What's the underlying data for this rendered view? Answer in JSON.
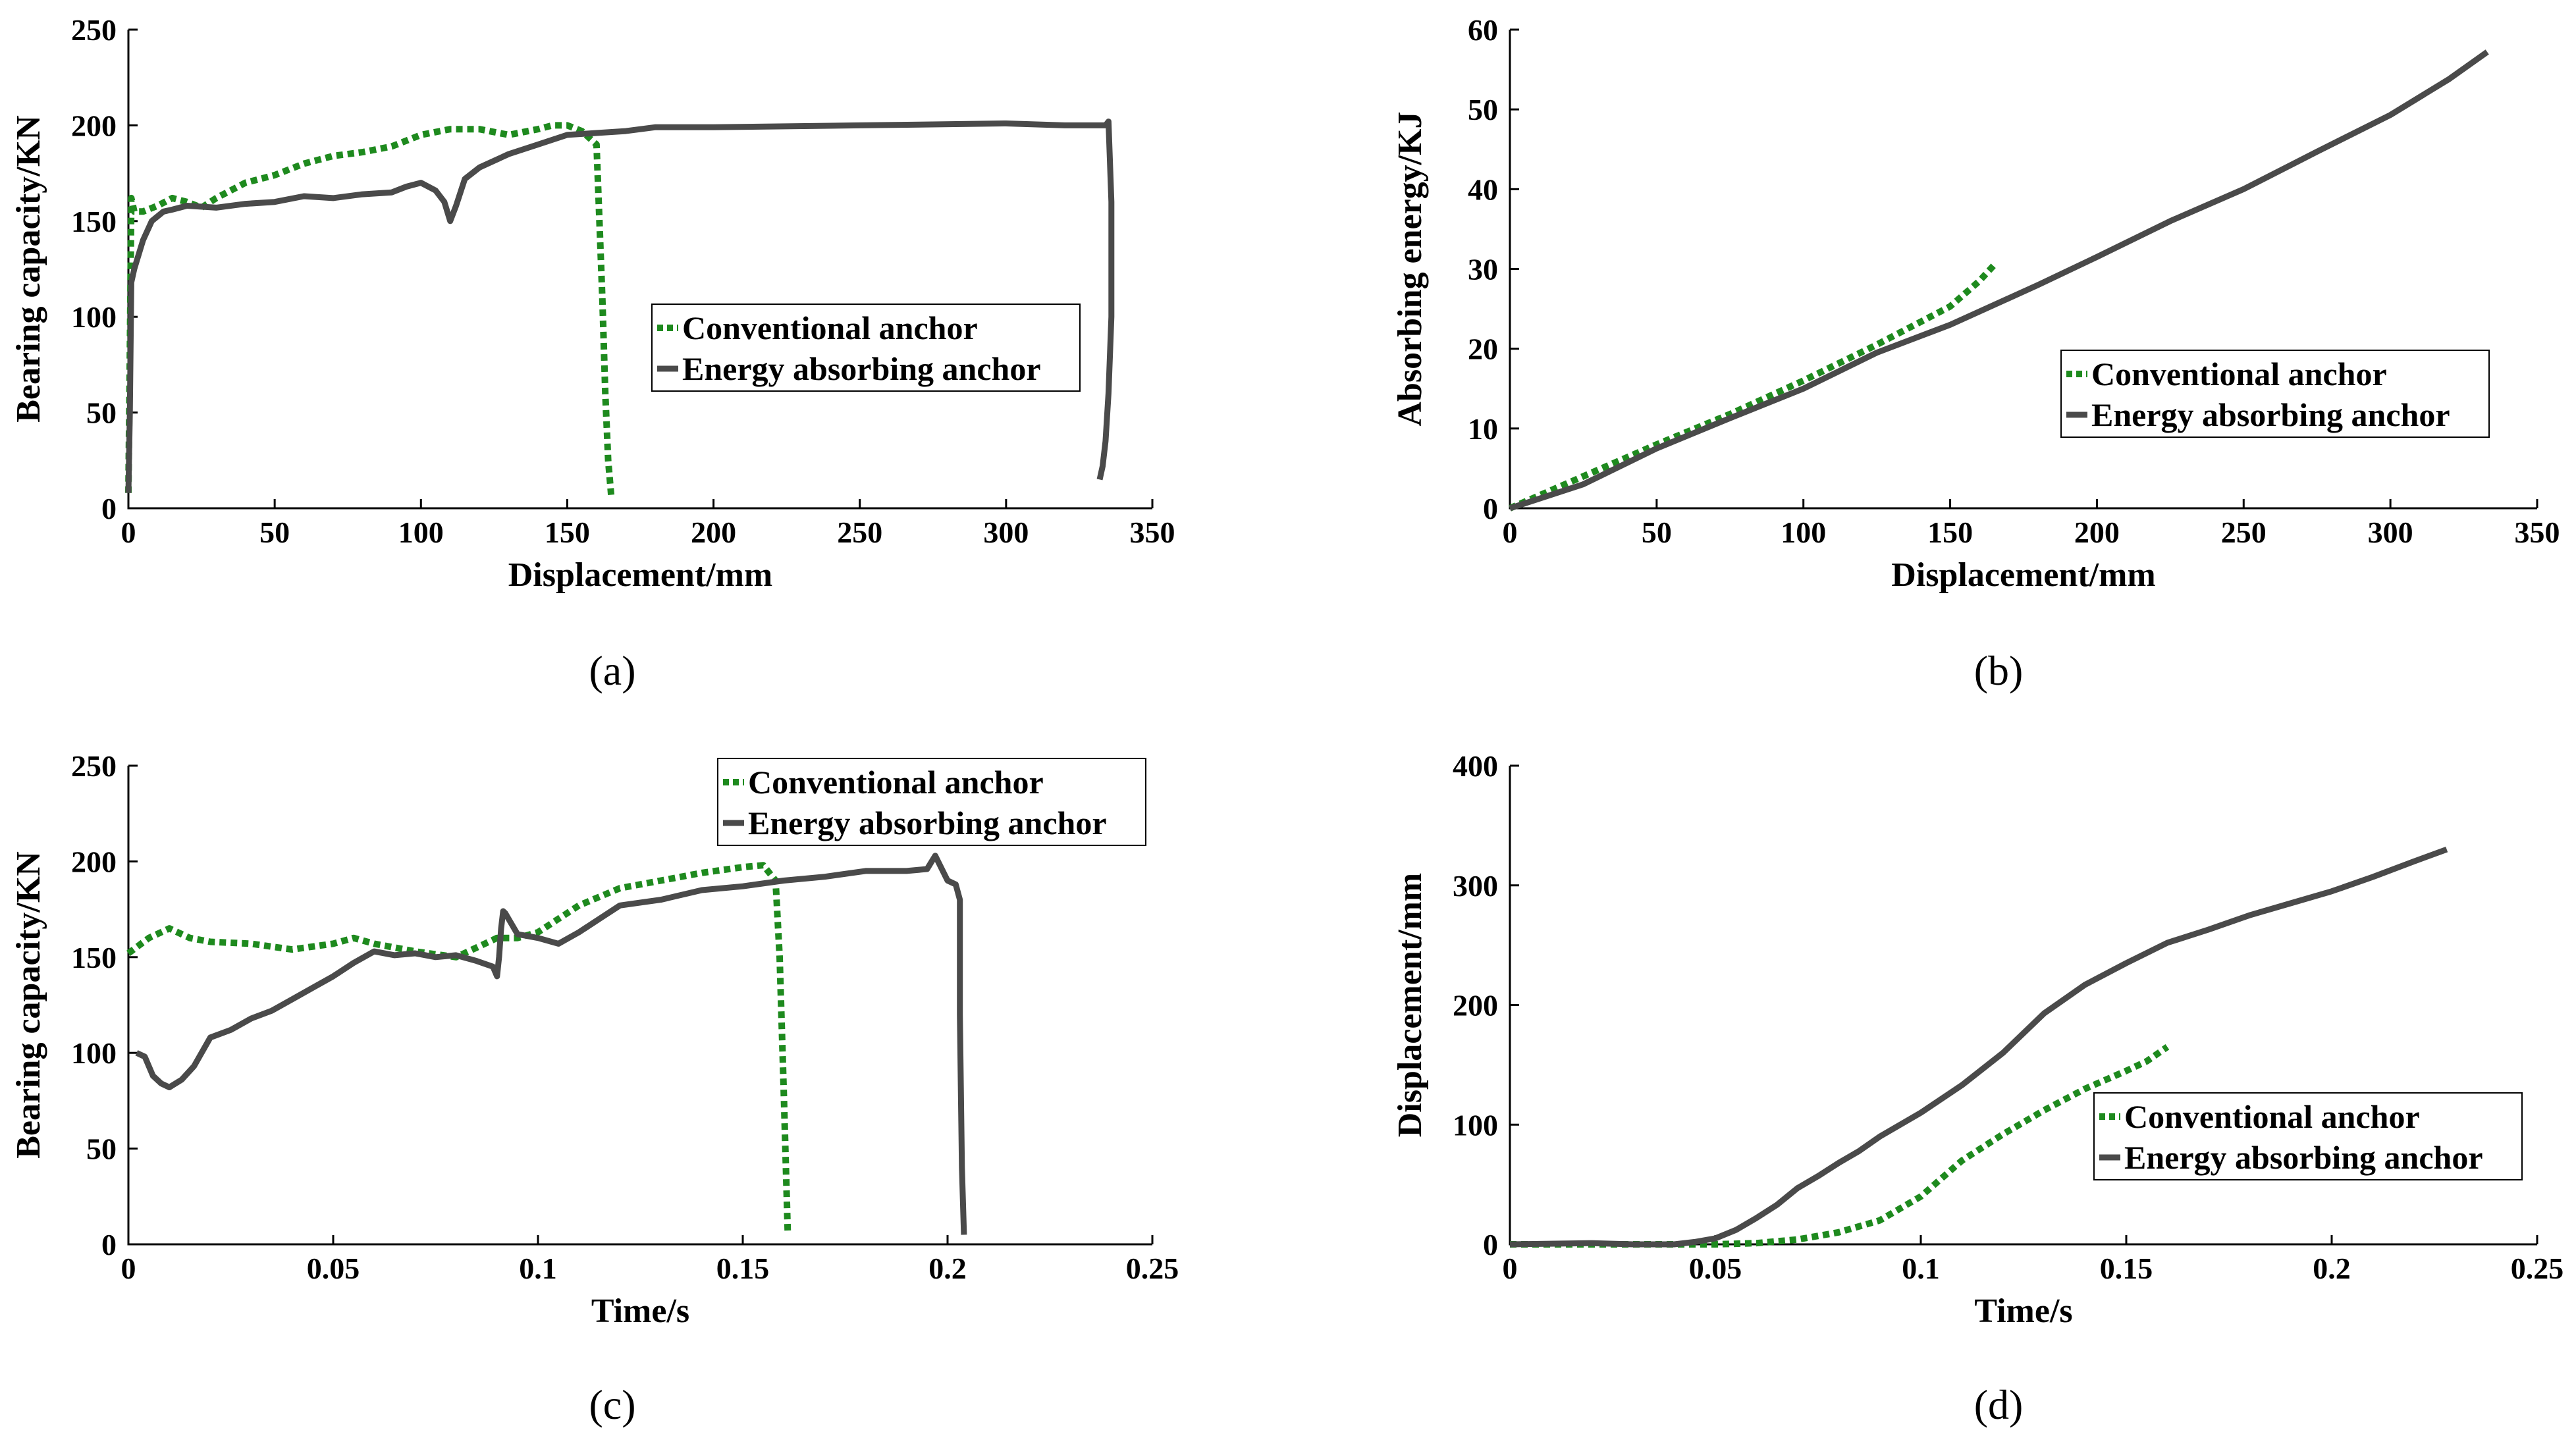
{
  "colors": {
    "conventional": "#1e8a1e",
    "energy": "#4a4a4a"
  },
  "chart_data": [
    {
      "id": "a",
      "type": "line",
      "caption": "(a)",
      "title": "",
      "xlabel": "Displacement/mm",
      "ylabel": "Bearing capacity/KN",
      "xlim": [
        0,
        350
      ],
      "ylim": [
        0,
        250
      ],
      "xticks": [
        0,
        50,
        100,
        150,
        200,
        250,
        300,
        350
      ],
      "xtick_labels": [
        "0",
        "50",
        "100",
        "150",
        "200",
        "250",
        "300",
        "350"
      ],
      "yticks": [
        0,
        50,
        100,
        150,
        200,
        250
      ],
      "ytick_labels": [
        "0",
        "50",
        "100",
        "150",
        "200",
        "250"
      ],
      "legend_position": "middle-right",
      "series": [
        {
          "name": "Conventional anchor",
          "style": "dotted",
          "x": [
            0,
            0.5,
            1,
            2,
            5,
            10,
            15,
            20,
            25,
            30,
            40,
            50,
            60,
            70,
            80,
            90,
            100,
            110,
            120,
            130,
            140,
            145,
            150,
            155,
            160,
            161,
            162,
            163,
            164,
            165
          ],
          "y": [
            8,
            80,
            162,
            155,
            155,
            158,
            162,
            160,
            157,
            162,
            170,
            174,
            180,
            184,
            186,
            189,
            195,
            198,
            198,
            195,
            198,
            200,
            200,
            197,
            190,
            150,
            110,
            60,
            25,
            7
          ]
        },
        {
          "name": "Energy absorbing anchor",
          "style": "solid",
          "x": [
            0,
            0.5,
            1,
            2,
            5,
            8,
            12,
            15,
            20,
            30,
            40,
            50,
            60,
            70,
            80,
            90,
            95,
            100,
            105,
            108,
            110,
            112,
            115,
            120,
            130,
            140,
            150,
            160,
            170,
            180,
            200,
            250,
            300,
            320,
            330,
            334,
            335,
            336,
            336,
            335,
            334,
            333,
            332
          ],
          "y": [
            8,
            50,
            118,
            125,
            140,
            150,
            155,
            156,
            158,
            157,
            159,
            160,
            163,
            162,
            164,
            165,
            168,
            170,
            166,
            160,
            150,
            158,
            172,
            178,
            185,
            190,
            195,
            196,
            197,
            199,
            199,
            200,
            201,
            200,
            200,
            200,
            202,
            160,
            100,
            60,
            35,
            22,
            15
          ]
        }
      ]
    },
    {
      "id": "b",
      "type": "line",
      "caption": "(b)",
      "title": "",
      "xlabel": "Displacement/mm",
      "ylabel": "Absorbing energy/KJ",
      "xlim": [
        0,
        350
      ],
      "ylim": [
        0,
        60
      ],
      "xticks": [
        0,
        50,
        100,
        150,
        200,
        250,
        300,
        350
      ],
      "xtick_labels": [
        "0",
        "50",
        "100",
        "150",
        "200",
        "250",
        "300",
        "350"
      ],
      "yticks": [
        0,
        10,
        20,
        30,
        40,
        50,
        60
      ],
      "ytick_labels": [
        "0",
        "10",
        "20",
        "30",
        "40",
        "50",
        "60"
      ],
      "legend_position": "middle-right",
      "series": [
        {
          "name": "Conventional anchor",
          "style": "dotted",
          "x": [
            0,
            25,
            50,
            75,
            100,
            125,
            150,
            160,
            165
          ],
          "y": [
            0,
            4,
            8,
            11.8,
            16,
            20.5,
            25.3,
            28.5,
            30.5
          ]
        },
        {
          "name": "Energy absorbing anchor",
          "style": "solid",
          "x": [
            0,
            25,
            50,
            75,
            100,
            125,
            150,
            180,
            200,
            225,
            250,
            275,
            300,
            320,
            333
          ],
          "y": [
            0,
            3,
            7.5,
            11.3,
            15,
            19.5,
            23,
            28,
            31.5,
            36,
            40,
            44.7,
            49.3,
            53.8,
            57.2
          ]
        }
      ]
    },
    {
      "id": "c",
      "type": "line",
      "caption": "(c)",
      "title": "",
      "xlabel": "Time/s",
      "ylabel": "Bearing capacity/KN",
      "xlim": [
        0,
        0.25
      ],
      "ylim": [
        0,
        250
      ],
      "xticks": [
        0,
        0.05,
        0.1,
        0.15,
        0.2,
        0.25
      ],
      "xtick_labels": [
        "0",
        "0.05",
        "0.1",
        "0.15",
        "0.2",
        "0.25"
      ],
      "yticks": [
        0,
        50,
        100,
        150,
        200,
        250
      ],
      "ytick_labels": [
        "0",
        "50",
        "100",
        "150",
        "200",
        "250"
      ],
      "legend_position": "top-right",
      "series": [
        {
          "name": "Conventional anchor",
          "style": "dotted",
          "x": [
            0,
            0.005,
            0.01,
            0.015,
            0.02,
            0.03,
            0.04,
            0.05,
            0.055,
            0.06,
            0.07,
            0.08,
            0.085,
            0.09,
            0.095,
            0.1,
            0.11,
            0.12,
            0.13,
            0.14,
            0.15,
            0.155,
            0.158,
            0.159,
            0.16,
            0.161
          ],
          "y": [
            152,
            160,
            165,
            160,
            158,
            157,
            154,
            157,
            160,
            157,
            153,
            150,
            155,
            160,
            160,
            163,
            177,
            186,
            190,
            194,
            197,
            198,
            190,
            150,
            80,
            5
          ]
        },
        {
          "name": "Energy absorbing anchor",
          "style": "solid",
          "x": [
            0.002,
            0.004,
            0.006,
            0.008,
            0.01,
            0.013,
            0.016,
            0.02,
            0.025,
            0.03,
            0.035,
            0.04,
            0.045,
            0.05,
            0.055,
            0.06,
            0.065,
            0.07,
            0.075,
            0.08,
            0.085,
            0.089,
            0.09,
            0.0905,
            0.091,
            0.0915,
            0.092,
            0.095,
            0.1,
            0.105,
            0.11,
            0.115,
            0.12,
            0.13,
            0.14,
            0.15,
            0.16,
            0.17,
            0.18,
            0.19,
            0.195,
            0.197,
            0.2,
            0.202,
            0.203,
            0.203,
            0.2035,
            0.204
          ],
          "y": [
            100,
            98,
            88,
            84,
            82,
            86,
            93,
            108,
            112,
            118,
            122,
            128,
            134,
            140,
            147,
            153,
            151,
            152,
            150,
            151,
            148,
            145,
            140,
            150,
            165,
            174,
            173,
            162,
            160,
            157,
            163,
            170,
            177,
            180,
            185,
            187,
            190,
            192,
            195,
            195,
            196,
            203,
            190,
            188,
            180,
            120,
            40,
            5
          ]
        }
      ]
    },
    {
      "id": "d",
      "type": "line",
      "caption": "(d)",
      "title": "",
      "xlabel": "Time/s",
      "ylabel": "Displacement/mm",
      "xlim": [
        0,
        0.25
      ],
      "ylim": [
        0,
        400
      ],
      "xticks": [
        0,
        0.05,
        0.1,
        0.15,
        0.2,
        0.25
      ],
      "xtick_labels": [
        "0",
        "0.05",
        "0.1",
        "0.15",
        "0.2",
        "0.25"
      ],
      "yticks": [
        0,
        100,
        200,
        300,
        400
      ],
      "ytick_labels": [
        "0",
        "100",
        "200",
        "300",
        "400"
      ],
      "legend_position": "bottom-right",
      "series": [
        {
          "name": "Conventional anchor",
          "style": "dotted",
          "x": [
            0,
            0.04,
            0.05,
            0.06,
            0.07,
            0.08,
            0.09,
            0.1,
            0.11,
            0.12,
            0.13,
            0.14,
            0.15,
            0.155,
            0.16
          ],
          "y": [
            0,
            0,
            0,
            1,
            4,
            10,
            20,
            40,
            70,
            92,
            112,
            130,
            145,
            153,
            165
          ]
        },
        {
          "name": "Energy absorbing anchor",
          "style": "solid",
          "x": [
            0,
            0.02,
            0.03,
            0.04,
            0.045,
            0.05,
            0.055,
            0.06,
            0.065,
            0.07,
            0.075,
            0.08,
            0.085,
            0.09,
            0.1,
            0.11,
            0.12,
            0.13,
            0.14,
            0.15,
            0.16,
            0.17,
            0.18,
            0.19,
            0.2,
            0.21,
            0.22,
            0.228
          ],
          "y": [
            0,
            1,
            0,
            0,
            2,
            5,
            12,
            22,
            33,
            47,
            57,
            68,
            78,
            90,
            110,
            133,
            160,
            193,
            217,
            235,
            252,
            263,
            275,
            285,
            295,
            307,
            320,
            330
          ]
        }
      ]
    }
  ]
}
